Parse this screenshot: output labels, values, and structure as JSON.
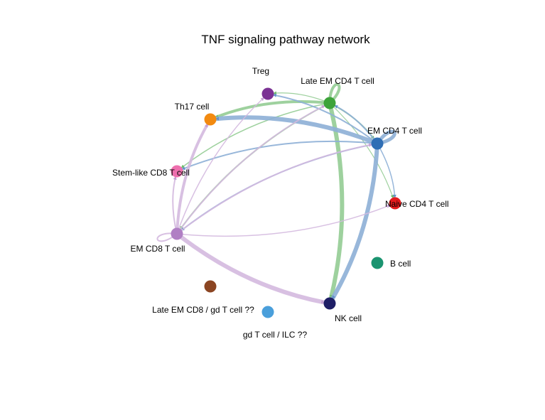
{
  "title": "TNF signaling pathway network",
  "nodes": [
    {
      "id": "treg",
      "label": "Treg",
      "color": "#7B3294"
    },
    {
      "id": "late_em_cd4",
      "label": "Late EM CD4 T cell",
      "color": "#3DA33A"
    },
    {
      "id": "th17",
      "label": "Th17 cell",
      "color": "#F28A10"
    },
    {
      "id": "em_cd4",
      "label": "EM CD4 T cell",
      "color": "#2F6EB5"
    },
    {
      "id": "stem_cd8",
      "label": "Stem-like CD8 T cell",
      "color": "#EE6FAE"
    },
    {
      "id": "naive_cd4",
      "label": "Naive CD4 T cell",
      "color": "#E31A1C"
    },
    {
      "id": "em_cd8",
      "label": "EM CD8 T cell",
      "color": "#B07FC4"
    },
    {
      "id": "b_cell",
      "label": "B cell",
      "color": "#1B9470"
    },
    {
      "id": "late_em_cd8_gd",
      "label": "Late EM CD8 / gd T cell ??",
      "color": "#8B4522"
    },
    {
      "id": "nk",
      "label": "NK cell",
      "color": "#1E1E66"
    },
    {
      "id": "gd_ilc",
      "label": "gd T cell / ILC ??",
      "color": "#4A9FDB"
    }
  ],
  "edges": [
    {
      "source": "late_em_cd4",
      "target": "late_em_cd4",
      "weight": 4
    },
    {
      "source": "late_em_cd4",
      "target": "treg",
      "weight": 1.2
    },
    {
      "source": "late_em_cd4",
      "target": "th17",
      "weight": 4
    },
    {
      "source": "late_em_cd4",
      "target": "em_cd4",
      "weight": 2
    },
    {
      "source": "late_em_cd4",
      "target": "stem_cd8",
      "weight": 1.5
    },
    {
      "source": "late_em_cd4",
      "target": "naive_cd4",
      "weight": 1.2
    },
    {
      "source": "late_em_cd4",
      "target": "em_cd8",
      "weight": 2
    },
    {
      "source": "late_em_cd4",
      "target": "nk",
      "weight": 6
    },
    {
      "source": "em_cd4",
      "target": "em_cd4",
      "weight": 5
    },
    {
      "source": "em_cd4",
      "target": "treg",
      "weight": 2
    },
    {
      "source": "em_cd4",
      "target": "late_em_cd4",
      "weight": 2
    },
    {
      "source": "em_cd4",
      "target": "th17",
      "weight": 6
    },
    {
      "source": "em_cd4",
      "target": "stem_cd8",
      "weight": 2
    },
    {
      "source": "em_cd4",
      "target": "naive_cd4",
      "weight": 1.5
    },
    {
      "source": "em_cd4",
      "target": "em_cd8",
      "weight": 2
    },
    {
      "source": "em_cd4",
      "target": "nk",
      "weight": 6
    },
    {
      "source": "em_cd8",
      "target": "em_cd8",
      "weight": 2
    },
    {
      "source": "em_cd8",
      "target": "treg",
      "weight": 1.5
    },
    {
      "source": "em_cd8",
      "target": "th17",
      "weight": 4
    },
    {
      "source": "em_cd8",
      "target": "stem_cd8",
      "weight": 2
    },
    {
      "source": "em_cd8",
      "target": "late_em_cd4",
      "weight": 2
    },
    {
      "source": "em_cd8",
      "target": "em_cd4",
      "weight": 2
    },
    {
      "source": "em_cd8",
      "target": "naive_cd4",
      "weight": 1.5
    },
    {
      "source": "em_cd8",
      "target": "nk",
      "weight": 6
    }
  ]
}
